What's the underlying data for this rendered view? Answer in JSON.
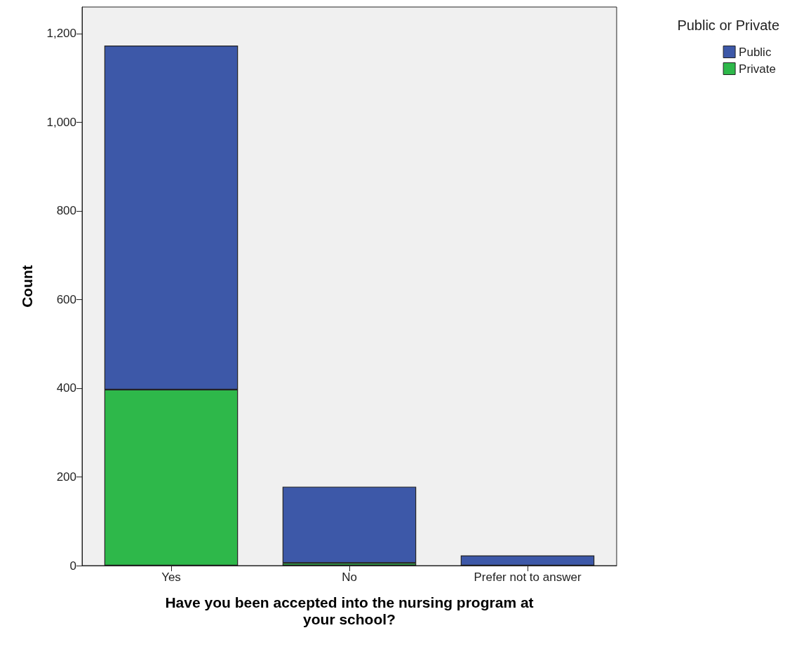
{
  "chart_data": {
    "type": "bar",
    "stacked": true,
    "xlabel": "Have you been accepted into the nursing program at\nyour school?",
    "ylabel": "Count",
    "legend_title": "Public or Private",
    "legend": "top right",
    "grid": false,
    "categories": [
      "Yes",
      "No",
      "Prefer not to answer"
    ],
    "series": [
      {
        "name": "Private",
        "color": "#2eb84a",
        "values": [
          397,
          6,
          0
        ]
      },
      {
        "name": "Public",
        "color": "#3d58a8",
        "values": [
          776,
          172,
          23
        ]
      }
    ],
    "ylim": [
      0,
      1260
    ],
    "yticks": [
      0,
      200,
      400,
      600,
      800,
      {
        "value": 1000,
        "label": "1,000"
      },
      {
        "value": 1200,
        "label": "1,200"
      }
    ]
  }
}
